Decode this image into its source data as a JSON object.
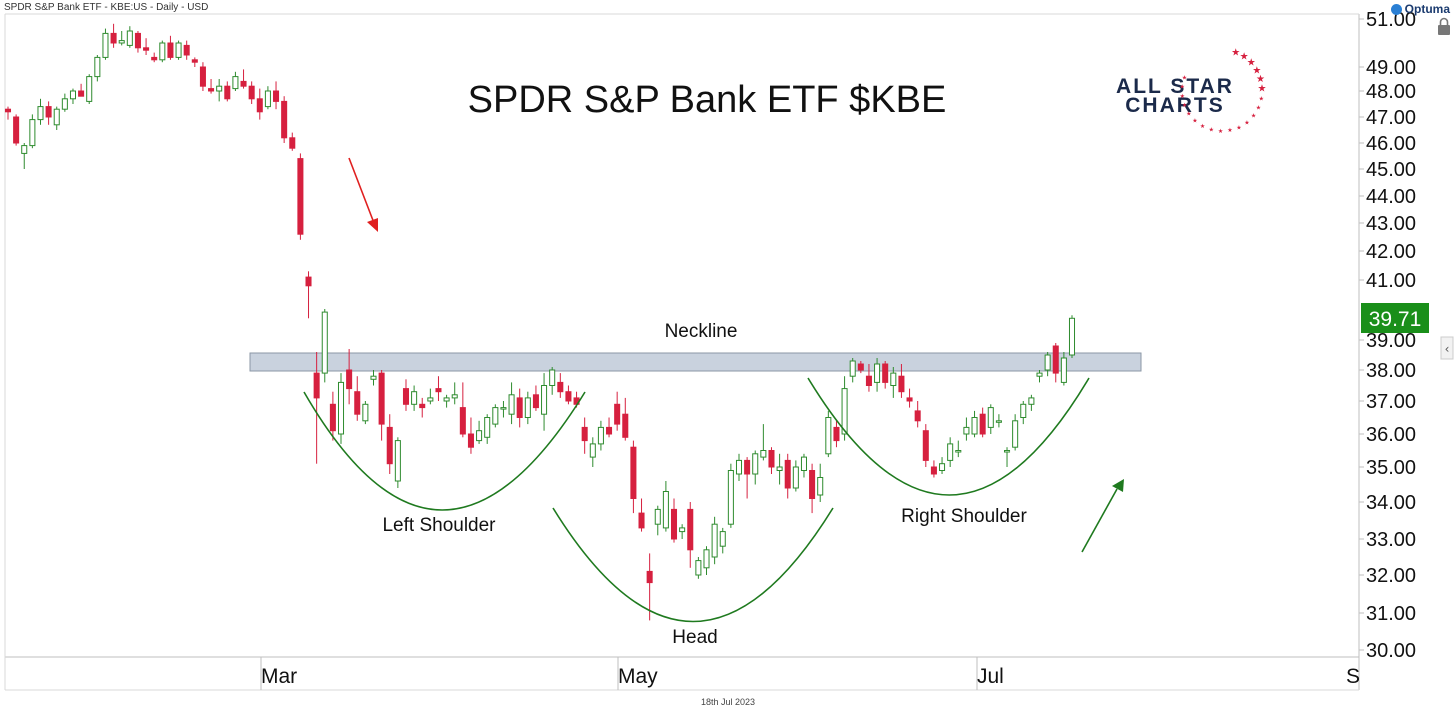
{
  "header": {
    "info": "SPDR S&P Bank ETF - KBE:US - Daily - USD",
    "brand": "Optuma"
  },
  "logo": {
    "line1": "ALL STAR",
    "line2": "CHARTS"
  },
  "footer": {
    "date": "18th Jul 2023"
  },
  "colors": {
    "up": "#2e8b2e",
    "down": "#d6203f",
    "arc": "#1f7a1f",
    "neckline": "#c9d2de",
    "price_tag": "#1a8f1a",
    "logo_navy": "#1b2a4a",
    "logo_red": "#d6203f"
  },
  "chart_data": {
    "type": "candlestick",
    "title": "SPDR S&P Bank ETF $KBE",
    "xlabel": "",
    "ylabel": "",
    "ylim": [
      30,
      51
    ],
    "y_ticks": [
      "51.00",
      "49.00",
      "48.00",
      "47.00",
      "46.00",
      "45.00",
      "44.00",
      "43.00",
      "42.00",
      "41.00",
      "39.00",
      "38.00",
      "37.00",
      "36.00",
      "35.00",
      "34.00",
      "33.00",
      "32.00",
      "31.00",
      "30.00"
    ],
    "x_ticks": [
      "Mar",
      "May",
      "Jul",
      "S"
    ],
    "last_price": "39.71",
    "annotations": {
      "neckline": "Neckline",
      "left_shoulder": "Left Shoulder",
      "head": "Head",
      "right_shoulder": "Right Shoulder"
    },
    "neckline_zone": [
      38.0,
      38.5
    ],
    "candles": [
      {
        "o": 47.3,
        "h": 47.4,
        "l": 46.9,
        "c": 47.2
      },
      {
        "o": 47.0,
        "h": 47.1,
        "l": 45.9,
        "c": 46.0
      },
      {
        "o": 45.6,
        "h": 46.0,
        "l": 45.0,
        "c": 45.9
      },
      {
        "o": 45.9,
        "h": 47.1,
        "l": 45.8,
        "c": 46.9
      },
      {
        "o": 46.9,
        "h": 47.7,
        "l": 46.7,
        "c": 47.4
      },
      {
        "o": 47.4,
        "h": 47.6,
        "l": 46.7,
        "c": 47.0
      },
      {
        "o": 46.7,
        "h": 47.4,
        "l": 46.5,
        "c": 47.3
      },
      {
        "o": 47.3,
        "h": 47.9,
        "l": 47.2,
        "c": 47.7
      },
      {
        "o": 47.7,
        "h": 48.1,
        "l": 47.5,
        "c": 48.0
      },
      {
        "o": 48.0,
        "h": 48.3,
        "l": 47.8,
        "c": 47.8
      },
      {
        "o": 47.6,
        "h": 48.7,
        "l": 47.5,
        "c": 48.6
      },
      {
        "o": 48.6,
        "h": 49.5,
        "l": 48.4,
        "c": 49.4
      },
      {
        "o": 49.4,
        "h": 50.6,
        "l": 49.3,
        "c": 50.4
      },
      {
        "o": 50.4,
        "h": 50.8,
        "l": 49.8,
        "c": 50.0
      },
      {
        "o": 50.0,
        "h": 50.5,
        "l": 49.9,
        "c": 50.1
      },
      {
        "o": 49.9,
        "h": 50.7,
        "l": 49.8,
        "c": 50.5
      },
      {
        "o": 50.4,
        "h": 50.5,
        "l": 49.6,
        "c": 49.8
      },
      {
        "o": 49.8,
        "h": 50.2,
        "l": 49.5,
        "c": 49.7
      },
      {
        "o": 49.4,
        "h": 49.6,
        "l": 49.2,
        "c": 49.3
      },
      {
        "o": 49.3,
        "h": 50.1,
        "l": 49.2,
        "c": 50.0
      },
      {
        "o": 50.0,
        "h": 50.3,
        "l": 49.3,
        "c": 49.4
      },
      {
        "o": 49.4,
        "h": 50.1,
        "l": 49.3,
        "c": 50.0
      },
      {
        "o": 49.9,
        "h": 50.1,
        "l": 49.3,
        "c": 49.5
      },
      {
        "o": 49.3,
        "h": 49.4,
        "l": 49.0,
        "c": 49.2
      },
      {
        "o": 49.0,
        "h": 49.2,
        "l": 48.0,
        "c": 48.2
      },
      {
        "o": 48.1,
        "h": 48.5,
        "l": 47.9,
        "c": 48.0
      },
      {
        "o": 48.0,
        "h": 48.5,
        "l": 47.6,
        "c": 48.2
      },
      {
        "o": 48.2,
        "h": 48.4,
        "l": 47.6,
        "c": 47.7
      },
      {
        "o": 48.1,
        "h": 48.8,
        "l": 48.0,
        "c": 48.6
      },
      {
        "o": 48.4,
        "h": 48.9,
        "l": 48.1,
        "c": 48.2
      },
      {
        "o": 48.2,
        "h": 48.4,
        "l": 47.5,
        "c": 47.7
      },
      {
        "o": 47.7,
        "h": 48.1,
        "l": 46.9,
        "c": 47.2
      },
      {
        "o": 47.4,
        "h": 48.2,
        "l": 47.3,
        "c": 48.0
      },
      {
        "o": 48.0,
        "h": 48.4,
        "l": 47.3,
        "c": 47.6
      },
      {
        "o": 47.6,
        "h": 47.8,
        "l": 46.0,
        "c": 46.2
      },
      {
        "o": 46.2,
        "h": 46.4,
        "l": 45.7,
        "c": 45.8
      },
      {
        "o": 45.4,
        "h": 45.6,
        "l": 42.4,
        "c": 42.6
      },
      {
        "o": 41.1,
        "h": 41.3,
        "l": 39.7,
        "c": 40.8
      },
      {
        "o": 37.9,
        "h": 38.6,
        "l": 35.1,
        "c": 37.1
      },
      {
        "o": 37.9,
        "h": 40.0,
        "l": 37.6,
        "c": 39.9
      },
      {
        "o": 36.9,
        "h": 37.3,
        "l": 35.8,
        "c": 36.1
      },
      {
        "o": 36.0,
        "h": 37.9,
        "l": 35.7,
        "c": 37.6
      },
      {
        "o": 38.0,
        "h": 38.7,
        "l": 36.9,
        "c": 37.4
      },
      {
        "o": 37.3,
        "h": 37.8,
        "l": 36.4,
        "c": 36.6
      },
      {
        "o": 36.4,
        "h": 37.0,
        "l": 36.3,
        "c": 36.9
      },
      {
        "o": 37.7,
        "h": 38.0,
        "l": 37.5,
        "c": 37.8
      },
      {
        "o": 37.9,
        "h": 38.0,
        "l": 35.8,
        "c": 36.3
      },
      {
        "o": 36.2,
        "h": 36.6,
        "l": 34.8,
        "c": 35.1
      },
      {
        "o": 34.6,
        "h": 35.9,
        "l": 34.4,
        "c": 35.8
      },
      {
        "o": 37.4,
        "h": 37.7,
        "l": 36.7,
        "c": 36.9
      },
      {
        "o": 36.9,
        "h": 37.5,
        "l": 36.7,
        "c": 37.3
      },
      {
        "o": 36.9,
        "h": 37.1,
        "l": 36.5,
        "c": 36.8
      },
      {
        "o": 37.0,
        "h": 37.4,
        "l": 36.9,
        "c": 37.1
      },
      {
        "o": 37.4,
        "h": 37.8,
        "l": 37.0,
        "c": 37.3
      },
      {
        "o": 37.0,
        "h": 37.2,
        "l": 36.8,
        "c": 37.1
      },
      {
        "o": 37.1,
        "h": 37.6,
        "l": 36.9,
        "c": 37.2
      },
      {
        "o": 36.8,
        "h": 37.6,
        "l": 35.9,
        "c": 36.0
      },
      {
        "o": 36.0,
        "h": 36.5,
        "l": 35.4,
        "c": 35.6
      },
      {
        "o": 35.8,
        "h": 36.4,
        "l": 35.7,
        "c": 36.1
      },
      {
        "o": 35.9,
        "h": 36.6,
        "l": 35.7,
        "c": 36.5
      },
      {
        "o": 36.3,
        "h": 36.9,
        "l": 36.2,
        "c": 36.8
      },
      {
        "o": 36.8,
        "h": 37.0,
        "l": 36.5,
        "c": 36.8
      },
      {
        "o": 36.6,
        "h": 37.6,
        "l": 36.3,
        "c": 37.2
      },
      {
        "o": 37.1,
        "h": 37.4,
        "l": 36.2,
        "c": 36.5
      },
      {
        "o": 36.5,
        "h": 37.3,
        "l": 36.3,
        "c": 37.1
      },
      {
        "o": 37.2,
        "h": 37.5,
        "l": 36.7,
        "c": 36.8
      },
      {
        "o": 36.6,
        "h": 37.9,
        "l": 36.1,
        "c": 37.5
      },
      {
        "o": 37.5,
        "h": 38.1,
        "l": 37.2,
        "c": 38.0
      },
      {
        "o": 37.6,
        "h": 37.9,
        "l": 37.1,
        "c": 37.3
      },
      {
        "o": 37.3,
        "h": 37.5,
        "l": 36.9,
        "c": 37.0
      },
      {
        "o": 37.1,
        "h": 37.3,
        "l": 36.8,
        "c": 36.9
      },
      {
        "o": 36.2,
        "h": 36.5,
        "l": 35.4,
        "c": 35.8
      },
      {
        "o": 35.3,
        "h": 35.9,
        "l": 35.0,
        "c": 35.7
      },
      {
        "o": 35.7,
        "h": 36.4,
        "l": 35.5,
        "c": 36.2
      },
      {
        "o": 36.2,
        "h": 36.5,
        "l": 35.9,
        "c": 36.0
      },
      {
        "o": 36.9,
        "h": 37.3,
        "l": 36.1,
        "c": 36.3
      },
      {
        "o": 36.6,
        "h": 37.1,
        "l": 35.8,
        "c": 35.9
      },
      {
        "o": 35.6,
        "h": 35.8,
        "l": 33.7,
        "c": 34.1
      },
      {
        "o": 33.7,
        "h": 34.1,
        "l": 33.2,
        "c": 33.3
      },
      {
        "o": 32.1,
        "h": 32.6,
        "l": 30.8,
        "c": 31.8
      },
      {
        "o": 33.4,
        "h": 33.9,
        "l": 33.1,
        "c": 33.8
      },
      {
        "o": 33.3,
        "h": 34.6,
        "l": 33.2,
        "c": 34.3
      },
      {
        "o": 33.8,
        "h": 34.1,
        "l": 32.9,
        "c": 33.0
      },
      {
        "o": 33.2,
        "h": 33.4,
        "l": 33.0,
        "c": 33.3
      },
      {
        "o": 33.8,
        "h": 34.0,
        "l": 32.2,
        "c": 32.7
      },
      {
        "o": 32.0,
        "h": 32.5,
        "l": 31.9,
        "c": 32.4
      },
      {
        "o": 32.2,
        "h": 32.8,
        "l": 32.0,
        "c": 32.7
      },
      {
        "o": 32.5,
        "h": 33.6,
        "l": 32.3,
        "c": 33.4
      },
      {
        "o": 32.8,
        "h": 33.3,
        "l": 32.6,
        "c": 33.2
      },
      {
        "o": 33.4,
        "h": 35.1,
        "l": 33.3,
        "c": 34.9
      },
      {
        "o": 34.8,
        "h": 35.4,
        "l": 34.6,
        "c": 35.2
      },
      {
        "o": 35.2,
        "h": 35.3,
        "l": 34.1,
        "c": 34.8
      },
      {
        "o": 34.8,
        "h": 35.5,
        "l": 34.5,
        "c": 35.4
      },
      {
        "o": 35.3,
        "h": 36.3,
        "l": 35.2,
        "c": 35.5
      },
      {
        "o": 35.5,
        "h": 35.6,
        "l": 34.8,
        "c": 35.0
      },
      {
        "o": 34.9,
        "h": 35.4,
        "l": 34.5,
        "c": 35.0
      },
      {
        "o": 35.2,
        "h": 35.4,
        "l": 34.1,
        "c": 34.4
      },
      {
        "o": 34.4,
        "h": 35.2,
        "l": 34.3,
        "c": 35.0
      },
      {
        "o": 34.9,
        "h": 35.4,
        "l": 34.7,
        "c": 35.3
      },
      {
        "o": 34.9,
        "h": 35.1,
        "l": 33.7,
        "c": 34.1
      },
      {
        "o": 34.2,
        "h": 35.1,
        "l": 34.0,
        "c": 34.7
      },
      {
        "o": 35.4,
        "h": 36.7,
        "l": 35.3,
        "c": 36.5
      },
      {
        "o": 36.2,
        "h": 36.4,
        "l": 35.6,
        "c": 35.8
      },
      {
        "o": 36.0,
        "h": 37.8,
        "l": 35.8,
        "c": 37.4
      },
      {
        "o": 37.8,
        "h": 38.4,
        "l": 37.6,
        "c": 38.3
      },
      {
        "o": 38.2,
        "h": 38.3,
        "l": 37.9,
        "c": 38.0
      },
      {
        "o": 37.8,
        "h": 38.2,
        "l": 37.3,
        "c": 37.5
      },
      {
        "o": 37.6,
        "h": 38.4,
        "l": 37.3,
        "c": 38.2
      },
      {
        "o": 38.2,
        "h": 38.3,
        "l": 37.4,
        "c": 37.6
      },
      {
        "o": 37.5,
        "h": 38.1,
        "l": 37.1,
        "c": 37.9
      },
      {
        "o": 37.8,
        "h": 38.2,
        "l": 37.1,
        "c": 37.3
      },
      {
        "o": 37.1,
        "h": 37.4,
        "l": 36.8,
        "c": 37.0
      },
      {
        "o": 36.7,
        "h": 37.0,
        "l": 36.2,
        "c": 36.4
      },
      {
        "o": 36.1,
        "h": 36.3,
        "l": 35.0,
        "c": 35.2
      },
      {
        "o": 35.0,
        "h": 35.2,
        "l": 34.7,
        "c": 34.8
      },
      {
        "o": 34.9,
        "h": 35.3,
        "l": 34.8,
        "c": 35.1
      },
      {
        "o": 35.2,
        "h": 35.9,
        "l": 35.0,
        "c": 35.7
      },
      {
        "o": 35.5,
        "h": 35.8,
        "l": 35.3,
        "c": 35.5
      },
      {
        "o": 36.0,
        "h": 36.5,
        "l": 35.8,
        "c": 36.2
      },
      {
        "o": 36.0,
        "h": 36.7,
        "l": 35.9,
        "c": 36.5
      },
      {
        "o": 36.6,
        "h": 36.8,
        "l": 35.9,
        "c": 36.0
      },
      {
        "o": 36.2,
        "h": 36.9,
        "l": 36.0,
        "c": 36.8
      },
      {
        "o": 36.4,
        "h": 36.6,
        "l": 36.2,
        "c": 36.4
      },
      {
        "o": 35.5,
        "h": 35.6,
        "l": 35.0,
        "c": 35.5
      },
      {
        "o": 35.6,
        "h": 36.6,
        "l": 35.5,
        "c": 36.4
      },
      {
        "o": 36.5,
        "h": 37.0,
        "l": 36.3,
        "c": 36.9
      },
      {
        "o": 36.9,
        "h": 37.2,
        "l": 36.7,
        "c": 37.1
      },
      {
        "o": 37.8,
        "h": 38.0,
        "l": 37.6,
        "c": 37.9
      },
      {
        "o": 38.0,
        "h": 38.6,
        "l": 37.8,
        "c": 38.5
      },
      {
        "o": 38.8,
        "h": 38.9,
        "l": 37.6,
        "c": 37.9
      },
      {
        "o": 37.6,
        "h": 38.6,
        "l": 37.5,
        "c": 38.4
      },
      {
        "o": 38.5,
        "h": 39.8,
        "l": 38.4,
        "c": 39.7
      }
    ]
  }
}
